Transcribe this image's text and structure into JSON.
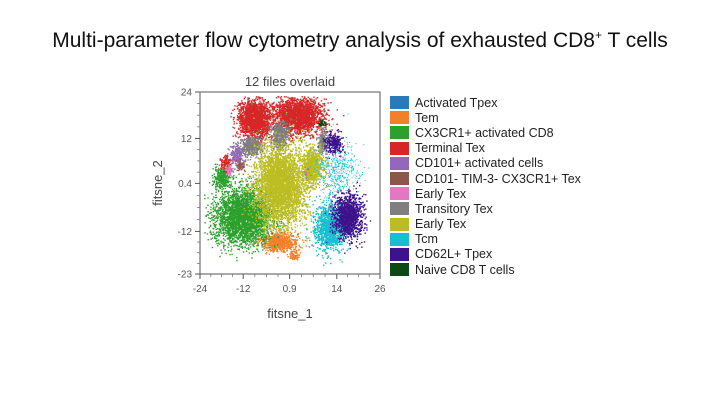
{
  "page": {
    "title": "Multi-parameter flow cytometry analysis of exhausted CD8",
    "title_sup": "+",
    "title_end": " T cells"
  },
  "chart_data": {
    "type": "scatter",
    "title": "12 files overlaid",
    "xlabel": "fitsne_1",
    "ylabel": "fitsne_2",
    "xlim": [
      -24,
      26
    ],
    "ylim": [
      -23,
      24
    ],
    "x_ticks": [
      "-24",
      "-12",
      "0.9",
      "14",
      "26"
    ],
    "x_tick_values": [
      -24,
      -12,
      0.9,
      14,
      26
    ],
    "y_ticks": [
      "24",
      "12",
      "0.4",
      "-12",
      "-23"
    ],
    "y_tick_values": [
      24,
      12,
      0.4,
      -12,
      -23
    ],
    "grid": false,
    "legend_position": "right",
    "series": [
      {
        "name": "Activated Tpex",
        "color": "#2a7ab9",
        "clusters": [
          {
            "cx": -3,
            "cy": -15,
            "rx": 2,
            "ry": 1.5,
            "n": 40
          }
        ]
      },
      {
        "name": "Tem",
        "color": "#f47f2a",
        "clusters": [
          {
            "cx": -2,
            "cy": -14.5,
            "rx": 5,
            "ry": 2.5,
            "n": 700
          },
          {
            "cx": 2,
            "cy": -18,
            "rx": 1.5,
            "ry": 1.2,
            "n": 80
          }
        ]
      },
      {
        "name": "CX3CR1+ activated CD8",
        "color": "#2ca02c",
        "clusters": [
          {
            "cx": -12,
            "cy": -8,
            "rx": 8,
            "ry": 7,
            "n": 3200
          },
          {
            "cx": -18,
            "cy": 2,
            "rx": 2.5,
            "ry": 3,
            "n": 300
          }
        ]
      },
      {
        "name": "Terminal Tex",
        "color": "#d62728",
        "clusters": [
          {
            "cx": -9,
            "cy": 17,
            "rx": 4.5,
            "ry": 5,
            "n": 1700
          },
          {
            "cx": 3,
            "cy": 18,
            "rx": 7,
            "ry": 4.5,
            "n": 2100
          },
          {
            "cx": -17,
            "cy": 6,
            "rx": 1.5,
            "ry": 2,
            "n": 120
          }
        ]
      },
      {
        "name": "CD101+ activated cells",
        "color": "#9467bd",
        "clusters": [
          {
            "cx": -14,
            "cy": 8,
            "rx": 2,
            "ry": 2.5,
            "n": 200
          },
          {
            "cx": 6,
            "cy": 3,
            "rx": 1.2,
            "ry": 2,
            "n": 120
          }
        ]
      },
      {
        "name": "CD101- TIM-3- CX3CR1+ Tex",
        "color": "#8c564b",
        "clusters": [
          {
            "cx": -13,
            "cy": 5,
            "rx": 1.3,
            "ry": 1.5,
            "n": 60
          }
        ]
      },
      {
        "name": "Early Tex",
        "color": "#e377c2",
        "clusters": [
          {
            "cx": -16,
            "cy": 4,
            "rx": 1.2,
            "ry": 1.3,
            "n": 50
          }
        ]
      },
      {
        "name": "Transitory Tex",
        "color": "#7f7f7f",
        "clusters": [
          {
            "cx": -10,
            "cy": 10,
            "rx": 3,
            "ry": 2.5,
            "n": 450
          },
          {
            "cx": -2,
            "cy": 13,
            "rx": 2.5,
            "ry": 3.5,
            "n": 500
          },
          {
            "cx": 10,
            "cy": 11,
            "rx": 1.5,
            "ry": 3,
            "n": 200
          }
        ]
      },
      {
        "name": "Early Tex",
        "color": "#bcbd22",
        "clusters": [
          {
            "cx": -2,
            "cy": 0,
            "rx": 7,
            "ry": 10,
            "n": 3800
          },
          {
            "cx": 7,
            "cy": 5,
            "rx": 3,
            "ry": 5,
            "n": 700
          }
        ]
      },
      {
        "name": "Tcm",
        "color": "#17becf",
        "clusters": [
          {
            "cx": 12,
            "cy": -11,
            "rx": 4.5,
            "ry": 6,
            "n": 1200
          },
          {
            "cx": 14,
            "cy": 4,
            "rx": 4,
            "ry": 5,
            "n": 500,
            "sparse": true
          }
        ]
      },
      {
        "name": "CD62L+ Tpex",
        "color": "#3d128c",
        "clusters": [
          {
            "cx": 17,
            "cy": -8,
            "rx": 4,
            "ry": 5.5,
            "n": 1200
          },
          {
            "cx": 13,
            "cy": 11,
            "rx": 2.5,
            "ry": 2.5,
            "n": 250
          }
        ]
      },
      {
        "name": "Naive CD8 T cells",
        "color": "#0b4a12",
        "clusters": [
          {
            "cx": 10,
            "cy": 16,
            "rx": 1.2,
            "ry": 1,
            "n": 40
          }
        ]
      }
    ]
  }
}
